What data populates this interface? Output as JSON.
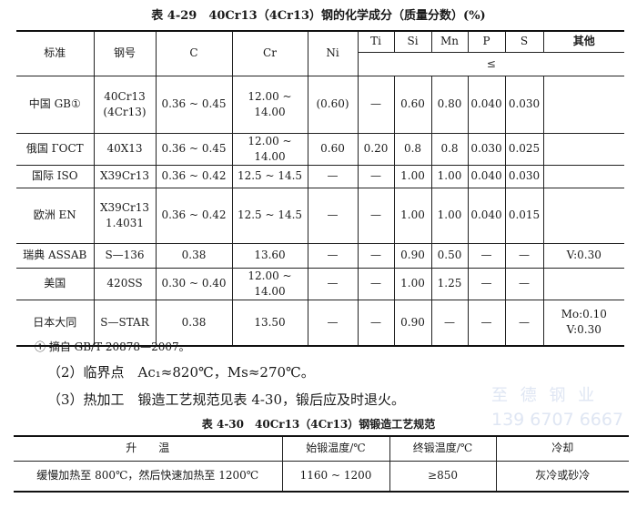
{
  "table1": {
    "title": "表 4-29　40Cr13（4Cr13）钢的化学成分（质量分数）(%)",
    "headers": {
      "standard": "标准",
      "grade": "钢号",
      "c": "C",
      "cr": "Cr",
      "ni": "Ni",
      "ti": "Ti",
      "si": "Si",
      "mn": "Mn",
      "p": "P",
      "s": "S",
      "other": "其他",
      "max_note": "≤"
    },
    "rows": [
      {
        "standard": "中国 GB①",
        "grade": "40Cr13",
        "grade2": "(4Cr13)",
        "c": "0.36 ~ 0.45",
        "cr": "12.00 ~ 14.00",
        "ni": "(0.60)",
        "ti": "—",
        "si": "0.60",
        "mn": "0.80",
        "p": "0.040",
        "s": "0.030",
        "other": "",
        "other2": ""
      },
      {
        "standard": "俄国 ГОСТ",
        "grade": "40X13",
        "grade2": "",
        "c": "0.36 ~ 0.45",
        "cr": "12.00 ~ 14.00",
        "ni": "0.60",
        "ti": "0.20",
        "si": "0.8",
        "mn": "0.8",
        "p": "0.030",
        "s": "0.025",
        "other": "",
        "other2": ""
      },
      {
        "standard": "国际 ISO",
        "grade": "X39Cr13",
        "grade2": "",
        "c": "0.36 ~ 0.42",
        "cr": "12.5 ~ 14.5",
        "ni": "—",
        "ti": "—",
        "si": "1.00",
        "mn": "1.00",
        "p": "0.040",
        "s": "0.030",
        "other": "",
        "other2": ""
      },
      {
        "standard": "欧洲 EN",
        "grade": "X39Cr13",
        "grade2": "1.4031",
        "c": "0.36 ~ 0.42",
        "cr": "12.5 ~ 14.5",
        "ni": "—",
        "ti": "—",
        "si": "1.00",
        "mn": "1.00",
        "p": "0.040",
        "s": "0.015",
        "other": "",
        "other2": ""
      },
      {
        "standard": "瑞典 ASSAB",
        "grade": "S—136",
        "grade2": "",
        "c": "0.38",
        "cr": "13.60",
        "ni": "—",
        "ti": "—",
        "si": "0.90",
        "mn": "0.50",
        "p": "—",
        "s": "—",
        "other": "V:0.30",
        "other2": ""
      },
      {
        "standard": "美国",
        "grade": "420SS",
        "grade2": "",
        "c": "0.30 ~ 0.40",
        "cr": "12.00 ~ 14.00",
        "ni": "—",
        "ti": "—",
        "si": "1.00",
        "mn": "1.25",
        "p": "—",
        "s": "—",
        "other": "",
        "other2": ""
      },
      {
        "standard": "日本大同",
        "grade": "S—STAR",
        "grade2": "",
        "c": "0.38",
        "cr": "13.50",
        "ni": "—",
        "ti": "—",
        "si": "0.90",
        "mn": "—",
        "p": "—",
        "s": "—",
        "other": "Mo:0.10",
        "other2": "V:0.30"
      }
    ],
    "footnote": "①  摘自 GB/T 20878—2007。"
  },
  "paragraphs": [
    "（2）临界点　Ac₁≈820℃，Ms≈270℃。",
    "（3）热加工　锻造工艺规范见表 4-30，锻后应及时退火。"
  ],
  "watermark": {
    "name": "至 德 钢 业",
    "phone": "139 6707 6667"
  },
  "table2": {
    "title": "表 4-30　40Cr13（4Cr13）钢锻造工艺规范",
    "headers": [
      "升　　温",
      "始锻温度/℃",
      "终锻温度/℃",
      "冷却"
    ],
    "row": [
      "缓慢加热至 800℃，然后快速加热至 1200℃",
      "1160 ~ 1200",
      "≥850",
      "灰冷或砂冷"
    ]
  }
}
